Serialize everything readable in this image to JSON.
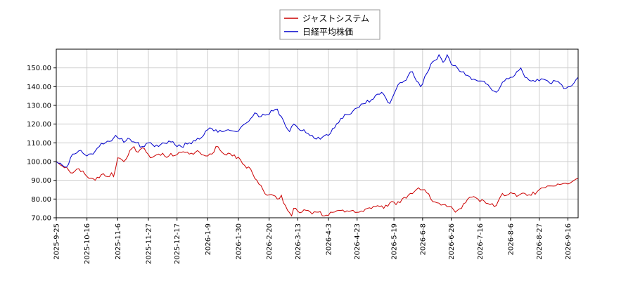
{
  "chart_data": {
    "type": "line",
    "title": "",
    "xlabel": "",
    "ylabel": "",
    "ylim": [
      70,
      160
    ],
    "y_ticks": [
      "70.00",
      "80.00",
      "90.00",
      "100.00",
      "110.00",
      "120.00",
      "130.00",
      "140.00",
      "150.00"
    ],
    "y_tick_values": [
      70,
      80,
      90,
      100,
      110,
      120,
      130,
      140,
      150
    ],
    "x_ticks": [
      "2025-9-25",
      "2025-10-16",
      "2025-11-6",
      "2025-11-27",
      "2025-12-17",
      "2026-1-9",
      "2026-1-30",
      "2026-2-20",
      "2026-3-13",
      "2026-4-3",
      "2026-4-23",
      "2026-5-19",
      "2026-6-8",
      "2026-6-26",
      "2026-7-16",
      "2026-8-6",
      "2026-8-27",
      "2026-9-16"
    ],
    "x_tick_index": [
      0,
      15,
      30,
      45,
      59,
      74,
      89,
      104,
      118,
      133,
      147,
      165,
      179,
      193,
      207,
      222,
      236,
      250
    ],
    "n_points": 256,
    "grid": true,
    "legend_position": "top-center",
    "series": [
      {
        "name": "ジャストシステム",
        "color": "#cc0000",
        "anchors": [
          [
            0,
            100
          ],
          [
            5,
            97
          ],
          [
            7,
            94
          ],
          [
            10,
            96
          ],
          [
            13,
            95
          ],
          [
            16,
            91
          ],
          [
            19,
            90
          ],
          [
            22,
            93
          ],
          [
            25,
            92
          ],
          [
            27,
            94
          ],
          [
            28,
            92
          ],
          [
            30,
            102
          ],
          [
            33,
            100
          ],
          [
            36,
            106
          ],
          [
            38,
            108
          ],
          [
            40,
            105
          ],
          [
            43,
            107
          ],
          [
            46,
            102
          ],
          [
            50,
            104
          ],
          [
            55,
            103
          ],
          [
            60,
            105
          ],
          [
            65,
            104
          ],
          [
            70,
            105
          ],
          [
            74,
            103
          ],
          [
            76,
            104
          ],
          [
            78,
            108
          ],
          [
            82,
            104
          ],
          [
            86,
            103
          ],
          [
            90,
            101
          ],
          [
            92,
            98
          ],
          [
            95,
            96
          ],
          [
            97,
            91
          ],
          [
            99,
            88
          ],
          [
            101,
            85
          ],
          [
            103,
            82
          ],
          [
            106,
            82
          ],
          [
            108,
            80
          ],
          [
            110,
            82
          ],
          [
            111,
            78
          ],
          [
            113,
            74
          ],
          [
            115,
            71
          ],
          [
            116,
            75
          ],
          [
            120,
            73
          ],
          [
            122,
            74
          ],
          [
            125,
            72
          ],
          [
            128,
            73
          ],
          [
            131,
            71
          ],
          [
            134,
            73
          ],
          [
            138,
            74
          ],
          [
            141,
            73
          ],
          [
            145,
            74
          ],
          [
            148,
            73
          ],
          [
            152,
            75
          ],
          [
            156,
            76
          ],
          [
            160,
            75
          ],
          [
            163,
            78
          ],
          [
            166,
            77
          ],
          [
            169,
            80
          ],
          [
            172,
            82
          ],
          [
            175,
            84
          ],
          [
            177,
            86
          ],
          [
            180,
            85
          ],
          [
            183,
            80
          ],
          [
            186,
            78
          ],
          [
            189,
            77
          ],
          [
            192,
            76
          ],
          [
            195,
            73
          ],
          [
            198,
            75
          ],
          [
            200,
            78
          ],
          [
            203,
            81
          ],
          [
            206,
            80
          ],
          [
            209,
            79
          ],
          [
            212,
            77
          ],
          [
            214,
            76
          ],
          [
            216,
            79
          ],
          [
            218,
            83
          ],
          [
            220,
            82
          ],
          [
            223,
            83
          ],
          [
            226,
            82
          ],
          [
            229,
            83
          ],
          [
            232,
            82
          ],
          [
            235,
            84
          ],
          [
            238,
            86
          ],
          [
            241,
            87
          ],
          [
            244,
            87
          ],
          [
            247,
            88
          ],
          [
            250,
            88
          ],
          [
            253,
            90
          ],
          [
            255,
            91
          ]
        ]
      },
      {
        "name": "日経平均株価",
        "color": "#0000cc",
        "anchors": [
          [
            0,
            100
          ],
          [
            3,
            98
          ],
          [
            5,
            97
          ],
          [
            8,
            104
          ],
          [
            12,
            106
          ],
          [
            15,
            103
          ],
          [
            18,
            104
          ],
          [
            21,
            108
          ],
          [
            24,
            110
          ],
          [
            27,
            111
          ],
          [
            29,
            114
          ],
          [
            31,
            112
          ],
          [
            34,
            111
          ],
          [
            36,
            112
          ],
          [
            39,
            110
          ],
          [
            42,
            108
          ],
          [
            45,
            110
          ],
          [
            48,
            108
          ],
          [
            52,
            110
          ],
          [
            55,
            111
          ],
          [
            58,
            109
          ],
          [
            61,
            108
          ],
          [
            65,
            110
          ],
          [
            68,
            111
          ],
          [
            70,
            112
          ],
          [
            72,
            114
          ],
          [
            75,
            118
          ],
          [
            78,
            117
          ],
          [
            81,
            116
          ],
          [
            84,
            117
          ],
          [
            88,
            116
          ],
          [
            90,
            118
          ],
          [
            92,
            120
          ],
          [
            95,
            123
          ],
          [
            97,
            126
          ],
          [
            100,
            124
          ],
          [
            103,
            125
          ],
          [
            106,
            127
          ],
          [
            108,
            128
          ],
          [
            110,
            124
          ],
          [
            112,
            119
          ],
          [
            114,
            116
          ],
          [
            116,
            120
          ],
          [
            118,
            118
          ],
          [
            121,
            117
          ],
          [
            123,
            115
          ],
          [
            125,
            114
          ],
          [
            127,
            112
          ],
          [
            130,
            113
          ],
          [
            133,
            114
          ],
          [
            136,
            118
          ],
          [
            139,
            123
          ],
          [
            142,
            125
          ],
          [
            145,
            127
          ],
          [
            148,
            129
          ],
          [
            151,
            131
          ],
          [
            154,
            133
          ],
          [
            157,
            136
          ],
          [
            159,
            137
          ],
          [
            161,
            134
          ],
          [
            163,
            131
          ],
          [
            165,
            136
          ],
          [
            167,
            141
          ],
          [
            170,
            143
          ],
          [
            172,
            146
          ],
          [
            174,
            148
          ],
          [
            176,
            143
          ],
          [
            178,
            140
          ],
          [
            181,
            147
          ],
          [
            183,
            152
          ],
          [
            185,
            154
          ],
          [
            187,
            157
          ],
          [
            189,
            153
          ],
          [
            191,
            157
          ],
          [
            193,
            152
          ],
          [
            196,
            150
          ],
          [
            199,
            148
          ],
          [
            201,
            146
          ],
          [
            204,
            144
          ],
          [
            206,
            143
          ],
          [
            208,
            143
          ],
          [
            211,
            141
          ],
          [
            213,
            138
          ],
          [
            215,
            137
          ],
          [
            217,
            140
          ],
          [
            219,
            143
          ],
          [
            222,
            145
          ],
          [
            225,
            148
          ],
          [
            227,
            150
          ],
          [
            229,
            145
          ],
          [
            232,
            143
          ],
          [
            235,
            144
          ],
          [
            238,
            144
          ],
          [
            241,
            142
          ],
          [
            244,
            143
          ],
          [
            247,
            141
          ],
          [
            249,
            139
          ],
          [
            251,
            140
          ],
          [
            253,
            142
          ],
          [
            255,
            145
          ]
        ]
      }
    ]
  }
}
